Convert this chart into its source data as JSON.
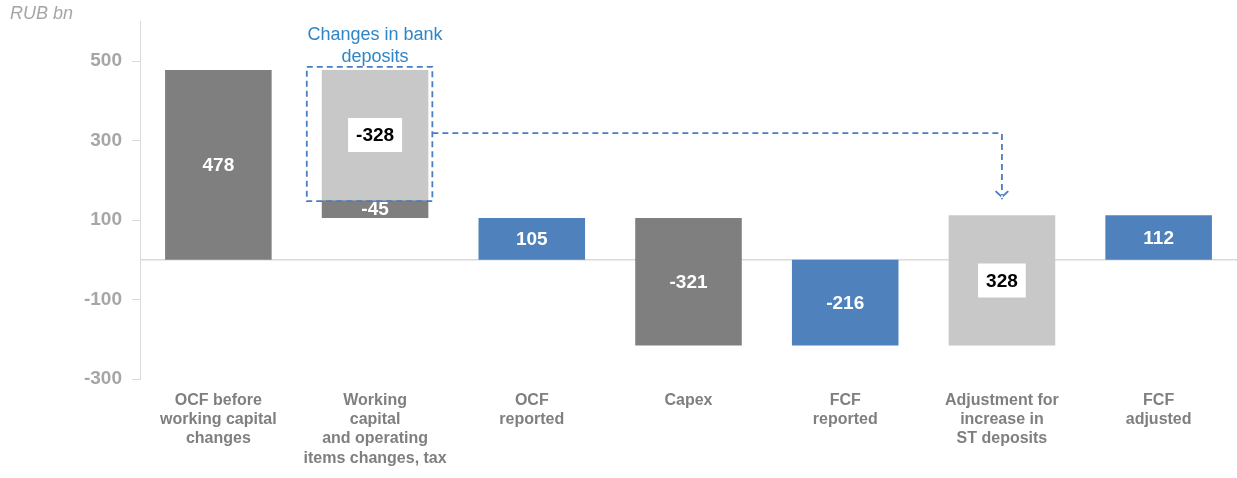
{
  "chart_data": {
    "type": "bar",
    "ylabel": "RUB bn",
    "categories": [
      "OCF before\nworking capital\nchanges",
      "Working\ncapital\nand operating\nitems changes, tax",
      "OCF\nreported",
      "Capex",
      "FCF\nreported",
      "Adjustment for\nincrease in\nST deposits",
      "FCF\nadjusted"
    ],
    "series": [
      {
        "color": "#7f7f7f",
        "colors": [
          "#7f7f7f",
          "#7f7f7f",
          "#4f81bd",
          "#7f7f7f",
          "#4f81bd",
          null,
          "#4f81bd"
        ],
        "values": [
          478,
          -45,
          105,
          -321,
          -216,
          null,
          112
        ],
        "base": [
          0,
          150,
          0,
          105,
          0,
          null,
          0
        ]
      },
      {
        "color": "#c8c8c8",
        "values": [
          null,
          -328,
          null,
          null,
          null,
          328,
          null
        ],
        "base": [
          null,
          478,
          null,
          null,
          null,
          -216,
          null
        ]
      }
    ],
    "ylim": [
      -300,
      600
    ],
    "yticks": [
      -300,
      -100,
      100,
      300,
      500
    ],
    "grid": false,
    "legend": false,
    "data_labels": true,
    "annotations": [
      {
        "text": "Changes in bank deposits",
        "x": "Working\ncapital\nand operating\nitems changes, tax",
        "y": 478
      }
    ]
  }
}
